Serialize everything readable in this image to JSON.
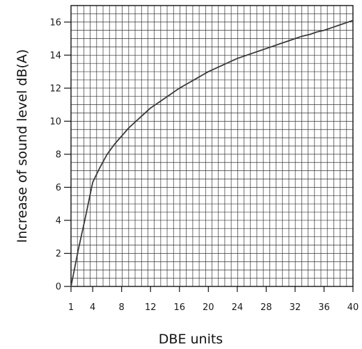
{
  "chart_data": {
    "type": "line",
    "xlabel": "DBE units",
    "ylabel": "Increase of sound level dB(A)",
    "xlim": [
      1,
      40
    ],
    "ylim": [
      0,
      17
    ],
    "x_ticks": [
      1,
      4,
      8,
      12,
      16,
      20,
      24,
      28,
      32,
      36,
      40
    ],
    "y_ticks": [
      0,
      2,
      4,
      6,
      8,
      10,
      12,
      14,
      16
    ],
    "grid": true,
    "series": [
      {
        "x": [
          1,
          2,
          3,
          4,
          5,
          6,
          7,
          8,
          9,
          10,
          11,
          12,
          13,
          14,
          15,
          16,
          17,
          18,
          19,
          20,
          21,
          22,
          23,
          24,
          25,
          26,
          27,
          28,
          29,
          30,
          31,
          32,
          33,
          34,
          35,
          36,
          37,
          38,
          39,
          40
        ],
        "values": [
          0,
          2.2,
          4.2,
          6.3,
          7.2,
          8.0,
          8.6,
          9.1,
          9.6,
          10.0,
          10.4,
          10.8,
          11.1,
          11.4,
          11.7,
          12.0,
          12.25,
          12.5,
          12.75,
          13.0,
          13.2,
          13.4,
          13.6,
          13.8,
          13.95,
          14.1,
          14.25,
          14.4,
          14.55,
          14.7,
          14.85,
          15.0,
          15.15,
          15.25,
          15.4,
          15.5,
          15.65,
          15.8,
          15.95,
          16.1
        ]
      }
    ],
    "colors": {
      "line": "#3a3a3a",
      "grid": "#333333",
      "frame": "#111111",
      "text": "#1a1a1a"
    }
  }
}
